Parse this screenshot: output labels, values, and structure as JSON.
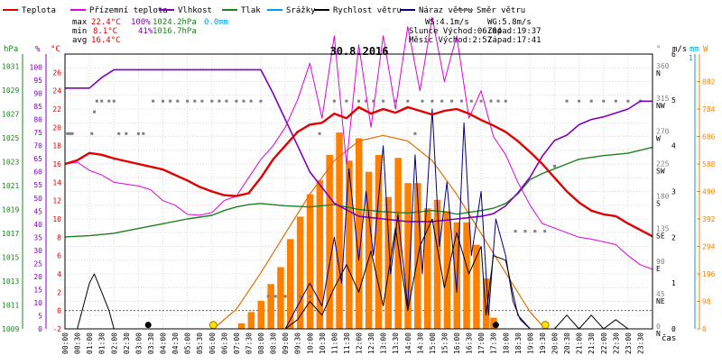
{
  "chart_data": {
    "type": "line",
    "title": "30.8.2016",
    "colors": {
      "temperature": "#e00000",
      "feels_like": "#e000e0",
      "humidity": "#8000c0",
      "pressure": "#208020",
      "rain": "#00a0e0",
      "wind_speed": "#000000",
      "wind_gust": "#000080",
      "wind_direction": "#808080",
      "solar": "#ff8000",
      "solar_curve": "#e07000"
    },
    "legend": [
      {
        "key": "temperature",
        "label": "Teplota"
      },
      {
        "key": "feels_like",
        "label": "Přízemní teplota"
      },
      {
        "key": "humidity",
        "label": "Vlhkost"
      },
      {
        "key": "pressure",
        "label": "Tlak"
      },
      {
        "key": "rain",
        "label": "Srážky"
      },
      {
        "key": "wind_speed",
        "label": "Rychlost větru"
      },
      {
        "key": "wind_gust",
        "label": "Náraz větru"
      },
      {
        "key": "wind_direction",
        "label": "Směr větru"
      }
    ],
    "stats": {
      "max_row": [
        "max",
        "22.4°C",
        "100%",
        "1024.2hPa",
        "0.0mm"
      ],
      "min_row": [
        "min",
        "8.1°C",
        "41%",
        "1016.7hPa"
      ],
      "avg_row": [
        "avg",
        "16.4°C"
      ],
      "wind_speed": "WS:4.1m/s",
      "wind_gust": "WG:5.8m/s",
      "sun": "Slunce Východ:06:04",
      "sunset": "Západ:19:37",
      "moon": "Měsíc Východ:2:57",
      "moonset": "Západ:17:41"
    },
    "axis_units": {
      "pressure": "hPa",
      "humidity": "%",
      "temperature": "°C",
      "direction": "°",
      "wind": "m/s",
      "rain": "mm",
      "solar": "W",
      "time": "čas"
    },
    "ylim_temperature": [
      -2,
      28
    ],
    "ylim_pressure": [
      1009,
      1032
    ],
    "ylim_humidity": [
      0,
      105
    ],
    "ylim_direction": [
      0,
      380
    ],
    "ylim_wind": [
      0,
      6
    ],
    "ylim_solar": [
      0,
      980
    ],
    "pressure_ticks": [
      "1031",
      "1029",
      "1027",
      "1025",
      "1023",
      "1021",
      "1019",
      "1017",
      "1015",
      "1013",
      "1011",
      "1009"
    ],
    "humidity_ticks": [
      "100",
      "95",
      "90",
      "85",
      "80",
      "75",
      "70",
      "65",
      "60",
      "55",
      "50",
      "45",
      "40",
      "35",
      "30",
      "25",
      "20",
      "15",
      "10",
      "5",
      "0"
    ],
    "temperature_ticks": [
      "26",
      "24",
      "22",
      "20",
      "18",
      "16",
      "14",
      "12",
      "10",
      "8",
      "6",
      "4",
      "2",
      "0",
      "-2"
    ],
    "direction_ticks": [
      {
        "deg": "360",
        "dir": "N"
      },
      {
        "deg": "315",
        "dir": "NW"
      },
      {
        "deg": "270",
        "dir": "W"
      },
      {
        "deg": "225",
        "dir": "SW"
      },
      {
        "deg": "180",
        "dir": "S"
      },
      {
        "deg": "135",
        "dir": "SE"
      },
      {
        "deg": "90",
        "dir": "E"
      },
      {
        "deg": "45",
        "dir": "NE"
      },
      {
        "deg": "0",
        "dir": "N"
      }
    ],
    "wind_ticks": [
      "6",
      "5",
      "4",
      "3",
      "2",
      "1",
      "0"
    ],
    "rain_ticks": [
      "1"
    ],
    "solar_ticks": [
      "882",
      "784",
      "686",
      "588",
      "490",
      "392",
      "294",
      "196",
      "98",
      "0"
    ],
    "time_labels": [
      "00:00",
      "00:30",
      "01:00",
      "01:30",
      "02:00",
      "02:30",
      "03:00",
      "03:30",
      "04:00",
      "04:30",
      "05:00",
      "05:30",
      "06:00",
      "06:30",
      "07:00",
      "07:30",
      "08:00",
      "08:30",
      "09:00",
      "09:30",
      "10:00",
      "10:30",
      "11:00",
      "11:30",
      "12:00",
      "12:30",
      "13:00",
      "13:30",
      "14:00",
      "14:30",
      "15:00",
      "15:30",
      "16:00",
      "16:30",
      "17:00",
      "17:30",
      "18:00",
      "18:30",
      "19:00",
      "19:30",
      "20:00",
      "20:30",
      "21:00",
      "21:30",
      "22:00",
      "22:30",
      "23:00",
      "23:30"
    ],
    "temperature": {
      "t": [
        0,
        0.5,
        1,
        1.5,
        2,
        3,
        4,
        5,
        5.5,
        6,
        6.5,
        7,
        7.5,
        8,
        8.5,
        9,
        9.5,
        10,
        10.5,
        11,
        11.5,
        12,
        12.5,
        13,
        13.5,
        14,
        14.5,
        15,
        15.5,
        16,
        16.5,
        17,
        17.5,
        18,
        18.5,
        19,
        19.5,
        20,
        20.5,
        21,
        21.5,
        22,
        22.5,
        23,
        23.5,
        24
      ],
      "v": [
        16,
        16.4,
        17.2,
        17,
        16.6,
        16,
        15.4,
        14.2,
        13.5,
        13,
        12.6,
        12.5,
        12.8,
        14.5,
        16.5,
        18,
        19.5,
        20.3,
        20.5,
        21.5,
        21,
        22.2,
        21.5,
        22,
        21.6,
        22.2,
        21.8,
        21.4,
        21.8,
        22,
        21.5,
        20.8,
        20.2,
        19.5,
        18.5,
        17.3,
        16,
        14.5,
        13,
        11.8,
        10.9,
        10.5,
        10.3,
        9.5,
        8.8,
        8.1
      ]
    },
    "feels_like": {
      "t": [
        0,
        0.5,
        1,
        1.5,
        2,
        2.5,
        3,
        3.5,
        4,
        4.5,
        5,
        5.5,
        6,
        6.5,
        7,
        7.5,
        8,
        8.5,
        9,
        9.5,
        10,
        10.5,
        11,
        11.5,
        12,
        12.5,
        13,
        13.5,
        14,
        14.5,
        15,
        15.5,
        16,
        16.5,
        17,
        17.5,
        18,
        18.5,
        19,
        19.5,
        20,
        20.5,
        21,
        21.5,
        22,
        22.5,
        23,
        23.5,
        24
      ],
      "v": [
        16,
        16.2,
        15.3,
        14.8,
        14,
        13.8,
        13.6,
        13.2,
        12,
        11.5,
        10.5,
        10.4,
        10.7,
        12,
        12.5,
        14.5,
        16.5,
        18,
        20,
        23,
        27,
        21,
        30,
        16,
        29,
        20,
        30,
        22,
        31,
        24,
        32,
        25,
        30,
        21,
        24,
        19,
        17,
        14,
        11.5,
        9.5,
        9,
        8.5,
        8,
        7.8,
        7.5,
        7.2,
        6,
        5,
        4.5
      ]
    },
    "humidity": {
      "t": [
        0,
        1,
        1.5,
        2,
        3,
        4,
        5,
        6,
        7,
        8,
        8.5,
        9,
        9.5,
        10,
        11,
        12,
        13,
        14,
        15,
        16,
        17,
        17.5,
        18,
        18.5,
        19,
        19.5,
        20,
        20.5,
        21,
        21.5,
        22,
        23,
        23.5,
        24
      ],
      "v": [
        92,
        92,
        96,
        99,
        99,
        99,
        99,
        99,
        99,
        99,
        90,
        80,
        70,
        60,
        48,
        43,
        42,
        41,
        41,
        42,
        43,
        44,
        47,
        52,
        58,
        66,
        72,
        74,
        78,
        80,
        81,
        84,
        87,
        87
      ]
    },
    "pressure": {
      "t": [
        0,
        1,
        2,
        3,
        4,
        5,
        6,
        6.5,
        7,
        7.5,
        8,
        9,
        10,
        11,
        12,
        13,
        14,
        15,
        15.5,
        16,
        17,
        17.5,
        18,
        18.5,
        19,
        19.5,
        20,
        20.5,
        21,
        22,
        23,
        24
      ],
      "v": [
        1016.7,
        1016.8,
        1017,
        1017.4,
        1017.8,
        1018.2,
        1018.5,
        1018.9,
        1019.2,
        1019.4,
        1019.5,
        1019.3,
        1019.2,
        1019.4,
        1019,
        1018.8,
        1018.7,
        1018.9,
        1018.8,
        1018.6,
        1018.9,
        1019.1,
        1019.5,
        1020.3,
        1021.5,
        1022,
        1022.4,
        1022.8,
        1023.2,
        1023.5,
        1023.7,
        1024.2
      ]
    },
    "wind_speed": {
      "t": [
        0,
        0.5,
        1,
        1.2,
        1.5,
        1.8,
        2,
        3,
        6,
        8,
        9,
        9.5,
        10,
        10.5,
        11,
        11.5,
        12,
        12.5,
        13,
        13.5,
        14,
        14.5,
        15,
        15.5,
        16,
        16.5,
        17,
        17.2,
        17.5,
        18,
        18.5,
        19,
        19.5,
        20,
        20.5,
        21,
        21.5,
        22,
        22.5,
        23,
        24
      ],
      "v": [
        0,
        0,
        1,
        1.2,
        0.8,
        0.4,
        0,
        0,
        0,
        0,
        0,
        0.2,
        0.6,
        0.3,
        0.9,
        1.4,
        0.8,
        1.7,
        0.5,
        2.2,
        0.4,
        1.8,
        2.4,
        0.9,
        2.1,
        1.2,
        1.8,
        0.3,
        1.6,
        1.5,
        0.3,
        0,
        0,
        0,
        0.3,
        0,
        0.3,
        0,
        0.2,
        0,
        0
      ]
    },
    "wind_gust": {
      "t": [
        0,
        9,
        9.5,
        10,
        10.5,
        11,
        11.3,
        11.6,
        12,
        12.3,
        12.6,
        13,
        13.3,
        13.6,
        14,
        14.3,
        14.6,
        15,
        15.3,
        15.6,
        16,
        16.3,
        16.6,
        17,
        17.3,
        17.6,
        18,
        18.3,
        18.6,
        19,
        24
      ],
      "v": [
        0,
        0,
        0.5,
        1,
        0.5,
        2,
        1,
        3.5,
        1.5,
        3,
        1.6,
        4,
        1.2,
        2.5,
        0.5,
        3.8,
        1.2,
        4.8,
        1.8,
        3.2,
        0.8,
        4.5,
        1.6,
        3,
        0.3,
        2.4,
        1.6,
        0.6,
        0.2,
        0,
        0
      ]
    },
    "solar_bars": {
      "t": [
        7.2,
        7.6,
        8,
        8.4,
        8.8,
        9.2,
        9.6,
        10,
        10.4,
        10.8,
        11.2,
        11.6,
        12,
        12.4,
        12.8,
        13.2,
        13.6,
        14,
        14.4,
        14.8,
        15.2,
        15.6,
        16,
        16.4,
        16.8,
        17.2,
        17.5
      ],
      "v": [
        20,
        60,
        100,
        160,
        220,
        320,
        400,
        480,
        530,
        620,
        700,
        600,
        680,
        560,
        620,
        470,
        610,
        520,
        520,
        430,
        460,
        420,
        380,
        380,
        300,
        180,
        40
      ]
    },
    "solar_curve": {
      "t": [
        6.06,
        7,
        8,
        9,
        10,
        11,
        12,
        13,
        14,
        15,
        16,
        17,
        18,
        19,
        19.62
      ],
      "v": [
        0,
        70,
        200,
        340,
        480,
        600,
        670,
        690,
        670,
        600,
        480,
        340,
        200,
        60,
        0
      ]
    },
    "wind_dir": {
      "t": [
        0.1,
        0.2,
        0.3,
        1.1,
        1.2,
        1.3,
        1.5,
        1.8,
        2,
        2.2,
        2.5,
        3,
        3.2,
        3.6,
        4,
        4.3,
        4.6,
        5,
        5.3,
        5.6,
        6,
        6.3,
        6.6,
        7,
        7.3,
        7.6,
        8,
        8.3,
        8.6,
        9,
        9.6,
        10,
        10.4,
        11,
        11.5,
        12,
        12.3,
        12.6,
        13,
        13.5,
        14,
        14.3,
        14.6,
        15,
        15.4,
        15.8,
        16.2,
        16.6,
        17,
        17.4,
        17.7,
        18,
        18.4,
        18.8,
        19.2,
        19.6,
        20,
        20.5,
        21,
        21.5,
        22,
        22.5,
        23,
        23.5
      ],
      "v": [
        270,
        270,
        270,
        270,
        300,
        315,
        315,
        315,
        315,
        270,
        270,
        270,
        270,
        315,
        315,
        315,
        315,
        315,
        315,
        315,
        315,
        315,
        315,
        315,
        315,
        315,
        315,
        45,
        45,
        45,
        45,
        45,
        270,
        315,
        315,
        315,
        315,
        315,
        315,
        315,
        315,
        270,
        315,
        315,
        315,
        315,
        315,
        315,
        315,
        315,
        315,
        315,
        135,
        135,
        135,
        135,
        225,
        315,
        315,
        315,
        315,
        315,
        315,
        315
      ]
    },
    "markers": {
      "rain_dot_time": 3.4,
      "sunrise_time": 6.06,
      "sunset_time": 19.62,
      "moon_dot_time": 17.6
    }
  }
}
